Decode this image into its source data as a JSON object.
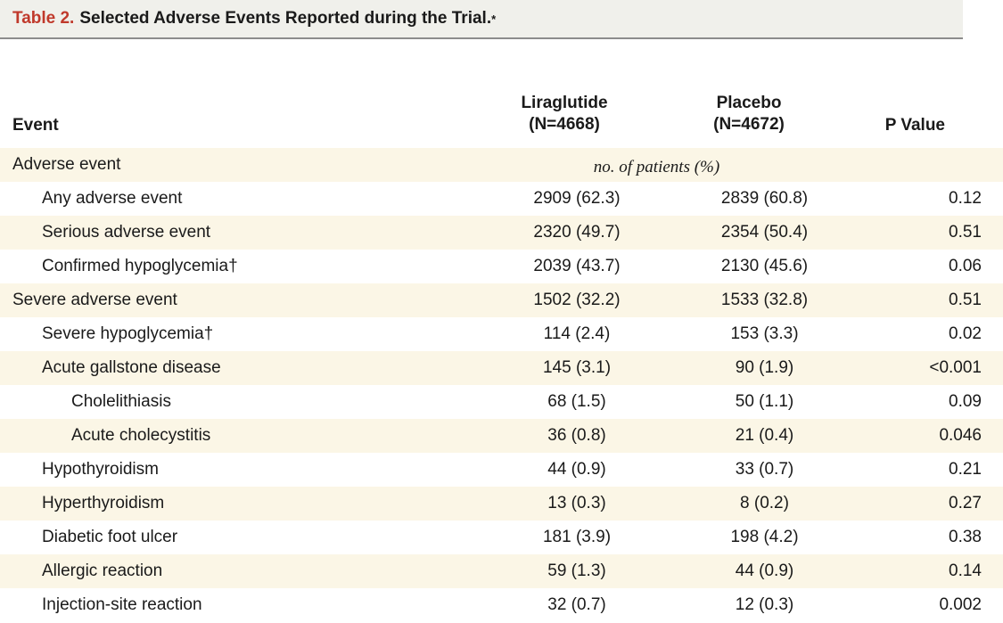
{
  "title": {
    "label": "Table 2.",
    "text": "Selected Adverse Events Reported during the Trial.",
    "mark": "*"
  },
  "header": {
    "event": "Event",
    "liraglutide": "Liraglutide",
    "liraglutide_n": "(N=4668)",
    "placebo": "Placebo",
    "placebo_n": "(N=4672)",
    "p_value": "P Value",
    "units": "no. of patients (%)"
  },
  "rows": [
    {
      "event": "Adverse event",
      "liraglutide": "",
      "placebo": "",
      "p": ""
    },
    {
      "event": "Any adverse event",
      "liraglutide": "2909 (62.3)",
      "placebo": "2839 (60.8)",
      "p": "0.12"
    },
    {
      "event": "Serious adverse event",
      "liraglutide": "2320 (49.7)",
      "placebo": "2354 (50.4)",
      "p": "0.51"
    },
    {
      "event": "Confirmed hypoglycemia†",
      "liraglutide": "2039 (43.7)",
      "placebo": "2130 (45.6)",
      "p": "0.06"
    },
    {
      "event": "Severe adverse event",
      "liraglutide": "1502 (32.2)",
      "placebo": "1533 (32.8)",
      "p": "0.51"
    },
    {
      "event": "Severe hypoglycemia†",
      "liraglutide": "114 (2.4)",
      "placebo": "153 (3.3)",
      "p": "0.02"
    },
    {
      "event": "Acute gallstone disease",
      "liraglutide": "145 (3.1)",
      "placebo": "90 (1.9)",
      "p": "<0.001"
    },
    {
      "event": "Cholelithiasis",
      "liraglutide": "68 (1.5)",
      "placebo": "50 (1.1)",
      "p": "0.09"
    },
    {
      "event": "Acute cholecystitis",
      "liraglutide": "36 (0.8)",
      "placebo": "21 (0.4)",
      "p": "0.046"
    },
    {
      "event": "Hypothyroidism",
      "liraglutide": "44 (0.9)",
      "placebo": "33 (0.7)",
      "p": "0.21"
    },
    {
      "event": "Hyperthyroidism",
      "liraglutide": "13 (0.3)",
      "placebo": "8 (0.2)",
      "p": "0.27"
    },
    {
      "event": "Diabetic foot ulcer",
      "liraglutide": "181 (3.9)",
      "placebo": "198 (4.2)",
      "p": "0.38"
    },
    {
      "event": "Allergic reaction",
      "liraglutide": "59 (1.3)",
      "placebo": "44 (0.9)",
      "p": "0.14"
    },
    {
      "event": "Injection-site reaction",
      "liraglutide": "32 (0.7)",
      "placebo": "12 (0.3)",
      "p": "0.002"
    }
  ]
}
